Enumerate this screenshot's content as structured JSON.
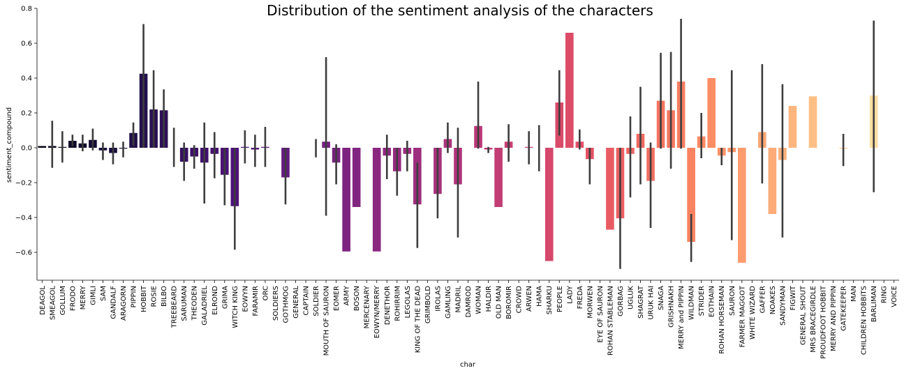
{
  "chart_data": {
    "type": "bar",
    "title": "Distribution of the sentiment analysis of the characters",
    "xlabel": "char",
    "ylabel": "sentiment_compound",
    "ylim": [
      -0.76,
      0.8
    ],
    "yticks": [
      -0.6,
      -0.4,
      -0.2,
      0.0,
      0.2,
      0.4,
      0.6,
      0.8
    ],
    "ytick_labels": [
      "−0.6",
      "−0.4",
      "−0.2",
      "0.0",
      "0.2",
      "0.4",
      "0.6",
      "0.8"
    ],
    "grid": false,
    "legend": "none",
    "palette": "magma",
    "categories": [
      "DEAGOL",
      "SMEAGOL",
      "GOLLUM",
      "FRODO",
      "MERRY",
      "GIMLI",
      "SAM",
      "GANDALF",
      "ARAGORN",
      "PIPPIN",
      "HOBBIT",
      "ROSIE",
      "BILBO",
      "TREEBEARD",
      "SARUMAN",
      "THEODEN",
      "GALADRIEL",
      "ELROND",
      "GRIMA",
      "WITCH KING",
      "EOWYN",
      "FARAMIR",
      "ORC",
      "SOLDIERS",
      "GOTHMOG",
      "GENERAL",
      "CAPTAIN",
      "SOLDIER",
      "MOUTH OF SAURON",
      "EOMER",
      "ARMY",
      "BOSON",
      "MERCENARY",
      "EOWYN/MERRY",
      "DENETHOR",
      "ROHIRRIM",
      "LEGOLAS",
      "KING OF THE DEAD",
      "GRIMBOLD",
      "IROLAS",
      "GAMLING",
      "MADRIL",
      "DAMROD",
      "WOMAN",
      "HALDIR",
      "OLD MAN",
      "BOROMIR",
      "CROWD",
      "ARWEN",
      "HAMA",
      "SHARKU",
      "PEOPLE",
      "LADY",
      "FREDA",
      "MORWEN",
      "EYE OF SAURON",
      "ROHAN STABLEMAN",
      "GORBAG",
      "UGLUK",
      "SHAGRAT",
      "URUK HAI",
      "SNAGA",
      "GRISHNAKH",
      "MERRY and PIPPIN",
      "WILDMAN",
      "STRIDER",
      "EOTHAIN",
      "ROHAN HORSEMAN",
      "SAURON",
      "FARMER MAGGOT",
      "WHITE WIZARD",
      "GAFFER",
      "NOAKES",
      "SANDYMAN",
      "FIGWIT",
      "GENERAL SHOUT",
      "MRS BRACEGIRDLE",
      "PROUDFOOT HOBBIT",
      "MERRY AND PIPPIN",
      "GATEKEEPER",
      "MAN",
      "CHILDREN HOBBITS",
      "BARLIMAN",
      "RING",
      "VOICE"
    ],
    "values": [
      0.01,
      0.01,
      0.005,
      0.04,
      0.025,
      0.045,
      -0.015,
      -0.03,
      -0.005,
      0.085,
      0.425,
      0.22,
      0.215,
      0.0,
      -0.08,
      -0.05,
      -0.085,
      -0.035,
      -0.155,
      -0.335,
      0.005,
      -0.01,
      0.005,
      0.0,
      -0.17,
      0.0,
      0.0,
      0.0,
      0.035,
      -0.085,
      -0.595,
      -0.34,
      0.0,
      -0.595,
      -0.045,
      -0.135,
      -0.035,
      -0.325,
      0.0,
      -0.265,
      0.05,
      -0.21,
      0.0,
      0.125,
      -0.01,
      -0.34,
      0.035,
      0.0,
      0.005,
      0.0,
      -0.65,
      0.26,
      0.66,
      0.035,
      -0.065,
      0.0,
      -0.47,
      -0.405,
      -0.035,
      0.08,
      -0.19,
      0.27,
      0.215,
      0.38,
      -0.54,
      0.065,
      0.4,
      -0.045,
      -0.025,
      -0.66,
      0.0,
      0.09,
      -0.38,
      -0.07,
      0.24,
      0.0,
      0.295,
      0.0,
      0.0,
      -0.005,
      0.0,
      0.0,
      0.3,
      0.0,
      0.0
    ],
    "ci_low": [
      null,
      -0.115,
      -0.085,
      0.01,
      -0.02,
      -0.015,
      -0.07,
      -0.095,
      -0.055,
      0.01,
      0.0,
      0.0,
      0.0,
      -0.11,
      -0.19,
      -0.12,
      -0.32,
      -0.175,
      -0.33,
      -0.585,
      -0.09,
      -0.11,
      -0.11,
      null,
      -0.325,
      null,
      null,
      -0.055,
      -0.39,
      -0.21,
      null,
      null,
      null,
      null,
      -0.18,
      -0.275,
      -0.135,
      -0.575,
      null,
      -0.405,
      -0.03,
      -0.515,
      null,
      -0.005,
      -0.03,
      null,
      -0.08,
      null,
      -0.095,
      -0.135,
      null,
      0.07,
      null,
      -0.01,
      -0.21,
      null,
      null,
      -0.695,
      -0.285,
      -0.21,
      -0.46,
      -0.005,
      -0.12,
      -0.005,
      -0.655,
      -0.06,
      null,
      -0.1,
      -0.53,
      null,
      null,
      -0.205,
      null,
      -0.515,
      null,
      null,
      null,
      null,
      null,
      -0.105,
      null,
      null,
      -0.255,
      null,
      null
    ],
    "ci_high": [
      null,
      0.155,
      0.095,
      0.075,
      0.075,
      0.11,
      0.03,
      0.03,
      0.035,
      0.145,
      0.71,
      0.445,
      0.335,
      0.115,
      0.03,
      0.015,
      0.145,
      0.09,
      0.0,
      0.0,
      0.1,
      0.075,
      0.12,
      null,
      0.0,
      null,
      null,
      0.05,
      0.52,
      0.02,
      null,
      null,
      null,
      null,
      0.075,
      0.0,
      0.04,
      -0.085,
      null,
      0.0,
      0.145,
      0.115,
      null,
      0.38,
      0.005,
      null,
      0.135,
      null,
      0.095,
      0.13,
      null,
      0.445,
      null,
      0.105,
      0.0,
      null,
      null,
      0.0,
      0.18,
      0.35,
      0.03,
      0.545,
      0.55,
      0.74,
      -0.38,
      0.2,
      null,
      0.0,
      0.445,
      null,
      null,
      0.48,
      null,
      0.365,
      null,
      null,
      null,
      null,
      null,
      0.08,
      null,
      null,
      0.73,
      null,
      null
    ]
  }
}
